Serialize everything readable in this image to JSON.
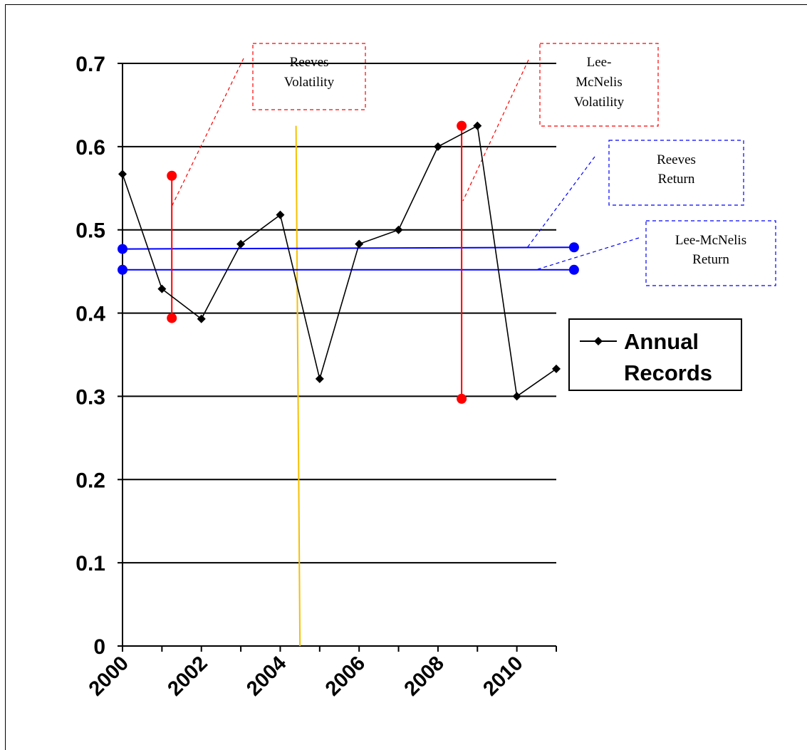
{
  "chart_data": {
    "type": "line",
    "title": "",
    "xlabel": "",
    "ylabel": "",
    "x_range": [
      2000,
      2011
    ],
    "ylim": [
      0,
      0.7
    ],
    "y_ticks": [
      "0",
      "0.1",
      "0.2",
      "0.3",
      "0.4",
      "0.5",
      "0.6",
      "0.7"
    ],
    "x_tick_labels": [
      "2000",
      "2002",
      "2004",
      "2006",
      "2008",
      "2010"
    ],
    "grid": "horizontal",
    "legend_position": "right",
    "series": [
      {
        "name": "Annual Records",
        "color": "#000000",
        "marker": "diamond",
        "x": [
          2000,
          2001,
          2002,
          2003,
          2004,
          2005,
          2006,
          2007,
          2008,
          2009,
          2010,
          2011
        ],
        "y": [
          0.567,
          0.429,
          0.393,
          0.483,
          0.518,
          0.321,
          0.483,
          0.5,
          0.6,
          0.625,
          0.3,
          0.333
        ]
      }
    ],
    "reference_lines": [
      {
        "label_lines": [
          "Reeves",
          "Return"
        ],
        "color": "#0000ff",
        "x_start": 2000,
        "x_end": 2011.45,
        "y_start": 0.477,
        "y_end": 0.479
      },
      {
        "label_lines": [
          "Lee-McNelis",
          "Return"
        ],
        "color": "#0000ff",
        "x_start": 2000,
        "x_end": 2011.45,
        "y_start": 0.452,
        "y_end": 0.452
      }
    ],
    "volatility_bars": [
      {
        "label_lines": [
          "Reeves",
          "Volatility"
        ],
        "color": "#ff0000",
        "x": 2001.25,
        "y_high": 0.565,
        "y_low": 0.394
      },
      {
        "label_lines": [
          "Lee-",
          "McNelis",
          "Volatility"
        ],
        "color": "#ff0000",
        "x": 2008.6,
        "y_high": 0.625,
        "y_low": 0.297
      }
    ],
    "marker_line": {
      "color": "#f5c000",
      "x_top": 2004.4,
      "y_top": 0.625,
      "x_bottom": 2004.5,
      "y_bottom": 0
    }
  }
}
